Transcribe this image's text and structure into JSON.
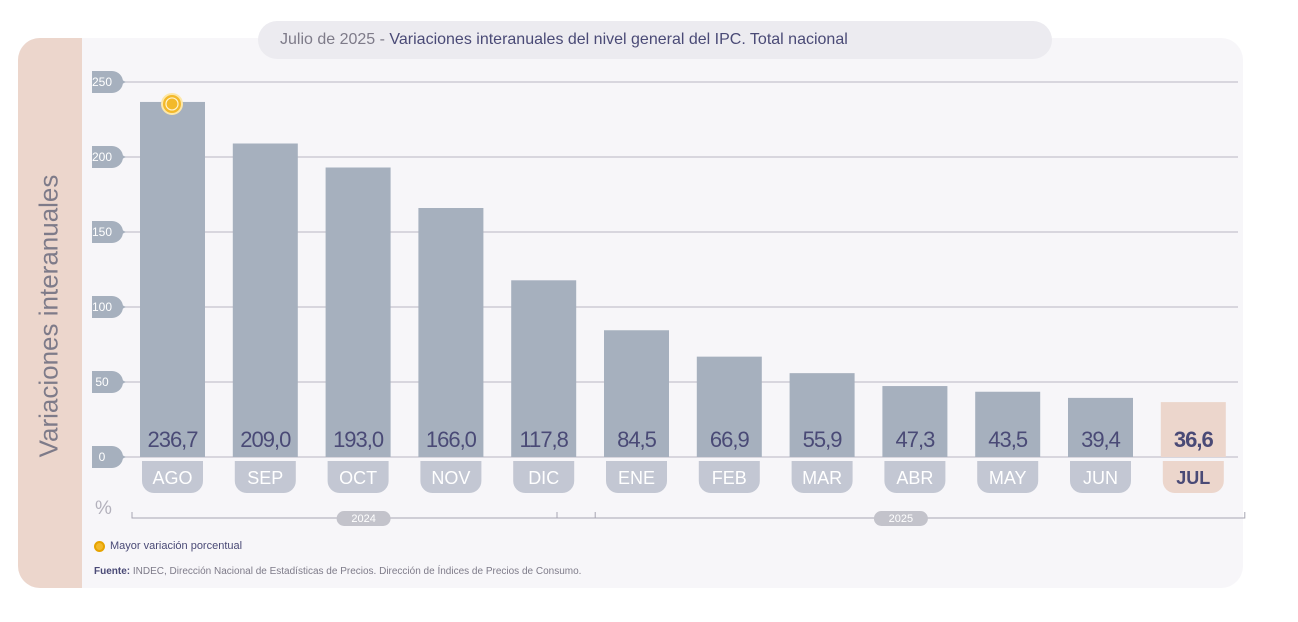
{
  "title": {
    "prefix": "Julio de 2025 - ",
    "main": "Variaciones interanuales del nivel general del IPC. Total nacional"
  },
  "y_axis_title": "Variaciones interanuales",
  "unit_label": "%",
  "legend": {
    "label": "Mayor variación porcentual"
  },
  "source": {
    "label": "Fuente:",
    "text": "INDEC, Dirección Nacional de Estadísticas de Precios. Dirección de Índices de Precios de Consumo."
  },
  "colors": {
    "bar": "#a6b0be",
    "bar_highlight": "#ecd6cc",
    "label_pill": "#c3c7d3",
    "label_pill_highlight": "#ecd6cc",
    "value_text": "#4a4a76",
    "marker": "#f3b92a"
  },
  "chart_data": {
    "type": "bar",
    "title": "Julio de 2025 - Variaciones interanuales del nivel general del IPC. Total nacional",
    "ylabel": "Variaciones interanuales",
    "unit": "%",
    "categories": [
      "AGO",
      "SEP",
      "OCT",
      "NOV",
      "DIC",
      "ENE",
      "FEB",
      "MAR",
      "ABR",
      "MAY",
      "JUN",
      "JUL"
    ],
    "values": [
      236.7,
      209.0,
      193.0,
      166.0,
      117.8,
      84.5,
      66.9,
      55.9,
      47.3,
      43.5,
      39.4,
      36.6
    ],
    "value_labels": [
      "236,7",
      "209,0",
      "193,0",
      "166,0",
      "117,8",
      "84,5",
      "66,9",
      "55,9",
      "47,3",
      "43,5",
      "39,4",
      "36,6"
    ],
    "ylim": [
      0,
      250
    ],
    "yticks": [
      0,
      50,
      100,
      150,
      200,
      250
    ],
    "grid": true,
    "highlight_index": 11,
    "max_marker_index": 0,
    "years": [
      {
        "label": "2024",
        "from": 0,
        "to": 4
      },
      {
        "label": "2025",
        "from": 5,
        "to": 11
      }
    ]
  }
}
